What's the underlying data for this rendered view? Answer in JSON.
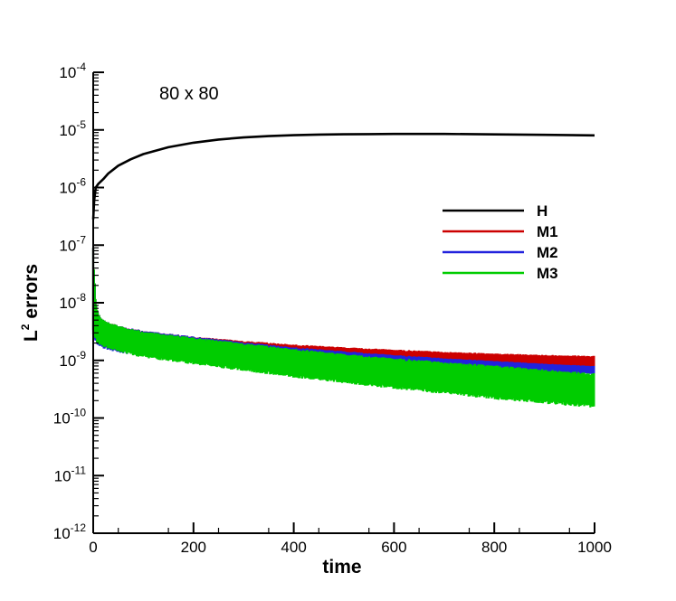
{
  "chart_data": {
    "type": "line",
    "annotation": "80 x 80",
    "xlabel": "time",
    "ylabel": {
      "base": "L",
      "sup": "2",
      "rest": " errors"
    },
    "xlim": [
      0,
      1000
    ],
    "ylim_exp": [
      -12,
      -4
    ],
    "yscale": "log",
    "x_ticks": [
      0,
      200,
      400,
      600,
      800,
      1000
    ],
    "y_tick_exps": [
      -12,
      -11,
      -10,
      -9,
      -8,
      -7,
      -6,
      -5,
      -4
    ],
    "legend_position": "upper-right",
    "grid": false,
    "series": [
      {
        "name": "H",
        "color": "#000000",
        "style": "line",
        "points": [
          [
            0,
            2.8e-07
          ],
          [
            2,
            6e-07
          ],
          [
            5,
            1e-06
          ],
          [
            10,
            1.15e-06
          ],
          [
            20,
            1.4e-06
          ],
          [
            30,
            1.75e-06
          ],
          [
            50,
            2.4e-06
          ],
          [
            75,
            3.1e-06
          ],
          [
            100,
            3.8e-06
          ],
          [
            150,
            5e-06
          ],
          [
            200,
            6e-06
          ],
          [
            250,
            6.8e-06
          ],
          [
            300,
            7.4e-06
          ],
          [
            350,
            7.8e-06
          ],
          [
            400,
            8.1e-06
          ],
          [
            450,
            8.3e-06
          ],
          [
            500,
            8.4e-06
          ],
          [
            550,
            8.45e-06
          ],
          [
            600,
            8.5e-06
          ],
          [
            700,
            8.5e-06
          ],
          [
            800,
            8.35e-06
          ],
          [
            900,
            8.2e-06
          ],
          [
            1000,
            8.05e-06
          ]
        ]
      },
      {
        "name": "M1",
        "color": "#cc0000",
        "style": "band",
        "upper": [
          [
            0,
            9e-08
          ],
          [
            5,
            1e-08
          ],
          [
            10,
            6.5e-09
          ],
          [
            20,
            5e-09
          ],
          [
            50,
            4e-09
          ],
          [
            100,
            3.3e-09
          ],
          [
            200,
            2.6e-09
          ],
          [
            300,
            2.2e-09
          ],
          [
            400,
            1.9e-09
          ],
          [
            500,
            1.7e-09
          ],
          [
            600,
            1.55e-09
          ],
          [
            700,
            1.42e-09
          ],
          [
            800,
            1.32e-09
          ],
          [
            900,
            1.25e-09
          ],
          [
            1000,
            1.2e-09
          ]
        ],
        "lower": [
          [
            0,
            3e-09
          ],
          [
            5,
            2.5e-09
          ],
          [
            10,
            2e-09
          ],
          [
            20,
            1.8e-09
          ],
          [
            50,
            1.5e-09
          ],
          [
            100,
            1.3e-09
          ],
          [
            200,
            1.1e-09
          ],
          [
            300,
            1e-09
          ],
          [
            400,
            9e-10
          ],
          [
            500,
            8.5e-10
          ],
          [
            600,
            8e-10
          ],
          [
            700,
            7.5e-10
          ],
          [
            800,
            7.2e-10
          ],
          [
            900,
            6.8e-10
          ],
          [
            1000,
            6.5e-10
          ]
        ]
      },
      {
        "name": "M2",
        "color": "#2222dd",
        "style": "band",
        "upper": [
          [
            0,
            9e-08
          ],
          [
            5,
            1e-08
          ],
          [
            10,
            6.5e-09
          ],
          [
            20,
            5e-09
          ],
          [
            50,
            4e-09
          ],
          [
            100,
            3.3e-09
          ],
          [
            200,
            2.6e-09
          ],
          [
            300,
            2.1e-09
          ],
          [
            400,
            1.7e-09
          ],
          [
            500,
            1.45e-09
          ],
          [
            600,
            1.25e-09
          ],
          [
            700,
            1.1e-09
          ],
          [
            800,
            9.8e-10
          ],
          [
            900,
            8.8e-10
          ],
          [
            1000,
            8e-10
          ]
        ],
        "lower": [
          [
            0,
            2.5e-09
          ],
          [
            5,
            2e-09
          ],
          [
            10,
            1.8e-09
          ],
          [
            20,
            1.6e-09
          ],
          [
            50,
            1.35e-09
          ],
          [
            100,
            1.15e-09
          ],
          [
            200,
            9.5e-10
          ],
          [
            300,
            8.2e-10
          ],
          [
            400,
            7.5e-10
          ],
          [
            500,
            7e-10
          ],
          [
            600,
            6.6e-10
          ],
          [
            700,
            6.3e-10
          ],
          [
            800,
            6.1e-10
          ],
          [
            900,
            5.9e-10
          ],
          [
            1000,
            5.8e-10
          ]
        ]
      },
      {
        "name": "M3",
        "color": "#00cc00",
        "style": "band",
        "upper": [
          [
            0,
            9e-08
          ],
          [
            5,
            1e-08
          ],
          [
            10,
            6.5e-09
          ],
          [
            20,
            5e-09
          ],
          [
            50,
            4e-09
          ],
          [
            100,
            3.2e-09
          ],
          [
            200,
            2.5e-09
          ],
          [
            300,
            2e-09
          ],
          [
            400,
            1.6e-09
          ],
          [
            500,
            1.3e-09
          ],
          [
            600,
            1.1e-09
          ],
          [
            700,
            9.5e-10
          ],
          [
            800,
            8.2e-10
          ],
          [
            900,
            7e-10
          ],
          [
            1000,
            6e-10
          ]
        ],
        "lower": [
          [
            0,
            3e-09
          ],
          [
            5,
            2.2e-09
          ],
          [
            10,
            1.9e-09
          ],
          [
            20,
            1.7e-09
          ],
          [
            50,
            1.4e-09
          ],
          [
            100,
            1.1e-09
          ],
          [
            200,
            8.5e-10
          ],
          [
            300,
            6.5e-10
          ],
          [
            400,
            5e-10
          ],
          [
            500,
            4e-10
          ],
          [
            600,
            3.2e-10
          ],
          [
            700,
            2.6e-10
          ],
          [
            800,
            2.1e-10
          ],
          [
            900,
            1.75e-10
          ],
          [
            1000,
            1.5e-10
          ]
        ]
      }
    ]
  }
}
